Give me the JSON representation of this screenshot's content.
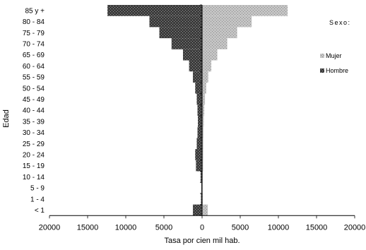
{
  "chart_data": {
    "type": "bar",
    "orientation": "horizontal",
    "layout": "population-pyramid",
    "xlabel": "Tasa por cien mil hab.",
    "ylabel": "Edad",
    "xlim": [
      -20000,
      20000
    ],
    "xticks": [
      -20000,
      -15000,
      -10000,
      -5000,
      0,
      5000,
      10000,
      15000,
      20000
    ],
    "xtick_labels": [
      "20000",
      "15000",
      "10000",
      "5000",
      "0",
      "5000",
      "10000",
      "15000",
      "20000"
    ],
    "grid": false,
    "legend_title": "Sexo:",
    "legend_position": "right",
    "categories": [
      "85 y +",
      "80 - 84",
      "75 - 79",
      "70 - 74",
      "65 - 69",
      "60 - 64",
      "55 - 59",
      "50 - 54",
      "45 - 49",
      "40 - 44",
      "35 - 39",
      "30 - 34",
      "25 - 29",
      "20 - 24",
      "15 - 19",
      "10 - 14",
      "5 - 9",
      "1 - 4",
      "< 1"
    ],
    "series": [
      {
        "name": "Mujer",
        "side": "right",
        "color": "#bfbfbf",
        "values": [
          11200,
          6500,
          4600,
          3300,
          2000,
          1200,
          800,
          550,
          380,
          280,
          220,
          180,
          160,
          150,
          140,
          80,
          60,
          80,
          750
        ]
      },
      {
        "name": "Hombre",
        "side": "left",
        "color": "#3a3a3a",
        "values": [
          12400,
          6900,
          5600,
          4000,
          2500,
          1700,
          1200,
          900,
          700,
          600,
          550,
          600,
          700,
          900,
          800,
          200,
          100,
          150,
          1200
        ]
      }
    ]
  }
}
